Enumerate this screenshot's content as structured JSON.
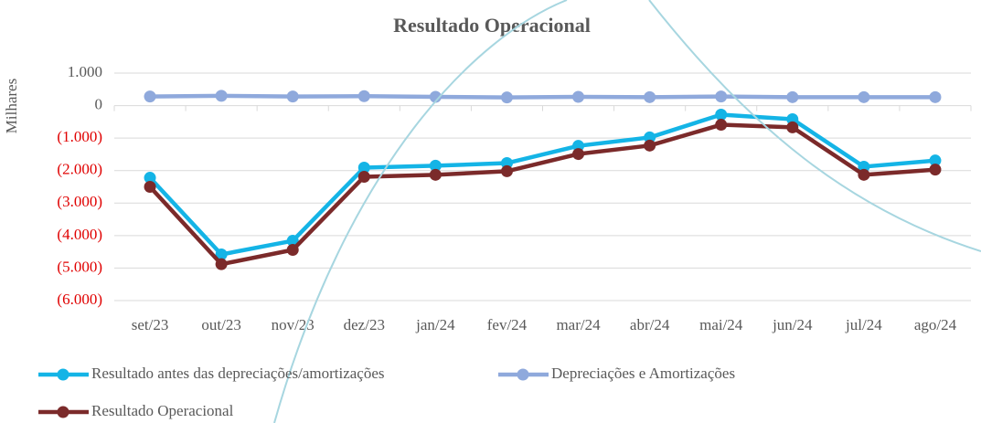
{
  "chart_data": {
    "type": "line",
    "title": "Resultado Operacional",
    "y_label": "Milhares",
    "categories": [
      "set/23",
      "out/23",
      "nov/23",
      "dez/23",
      "jan/24",
      "fev/24",
      "mar/24",
      "abr/24",
      "mai/24",
      "jun/24",
      "jul/24",
      "ago/24"
    ],
    "series": [
      {
        "name": "Resultado antes das depreciações/amortizações",
        "color": "#14b4e6",
        "values": [
          -2220,
          -4580,
          -4160,
          -1910,
          -1850,
          -1770,
          -1240,
          -980,
          -280,
          -420,
          -1880,
          -1690
        ]
      },
      {
        "name": "Depreciações e Amortizações",
        "color": "#8fa9dc",
        "values": [
          280,
          300,
          280,
          290,
          270,
          250,
          270,
          260,
          280,
          260,
          260,
          260
        ]
      },
      {
        "name": "Resultado Operacional",
        "color": "#7b2a2a",
        "values": [
          -2500,
          -4880,
          -4440,
          -2190,
          -2130,
          -2020,
          -1490,
          -1230,
          -590,
          -670,
          -2130,
          -1970
        ]
      }
    ],
    "ylim": [
      -6000,
      1000
    ],
    "yticks": [
      {
        "value": -6000,
        "label": "(6.000)"
      },
      {
        "value": -5000,
        "label": "(5.000)"
      },
      {
        "value": -4000,
        "label": "(4.000)"
      },
      {
        "value": -3000,
        "label": "(3.000)"
      },
      {
        "value": -2000,
        "label": "(2.000)"
      },
      {
        "value": -1000,
        "label": "(1.000)"
      },
      0,
      {
        "value": 1000,
        "label": "1.000"
      }
    ],
    "grid": true,
    "negative_label_color": "#e00000",
    "legend": "bottom"
  }
}
